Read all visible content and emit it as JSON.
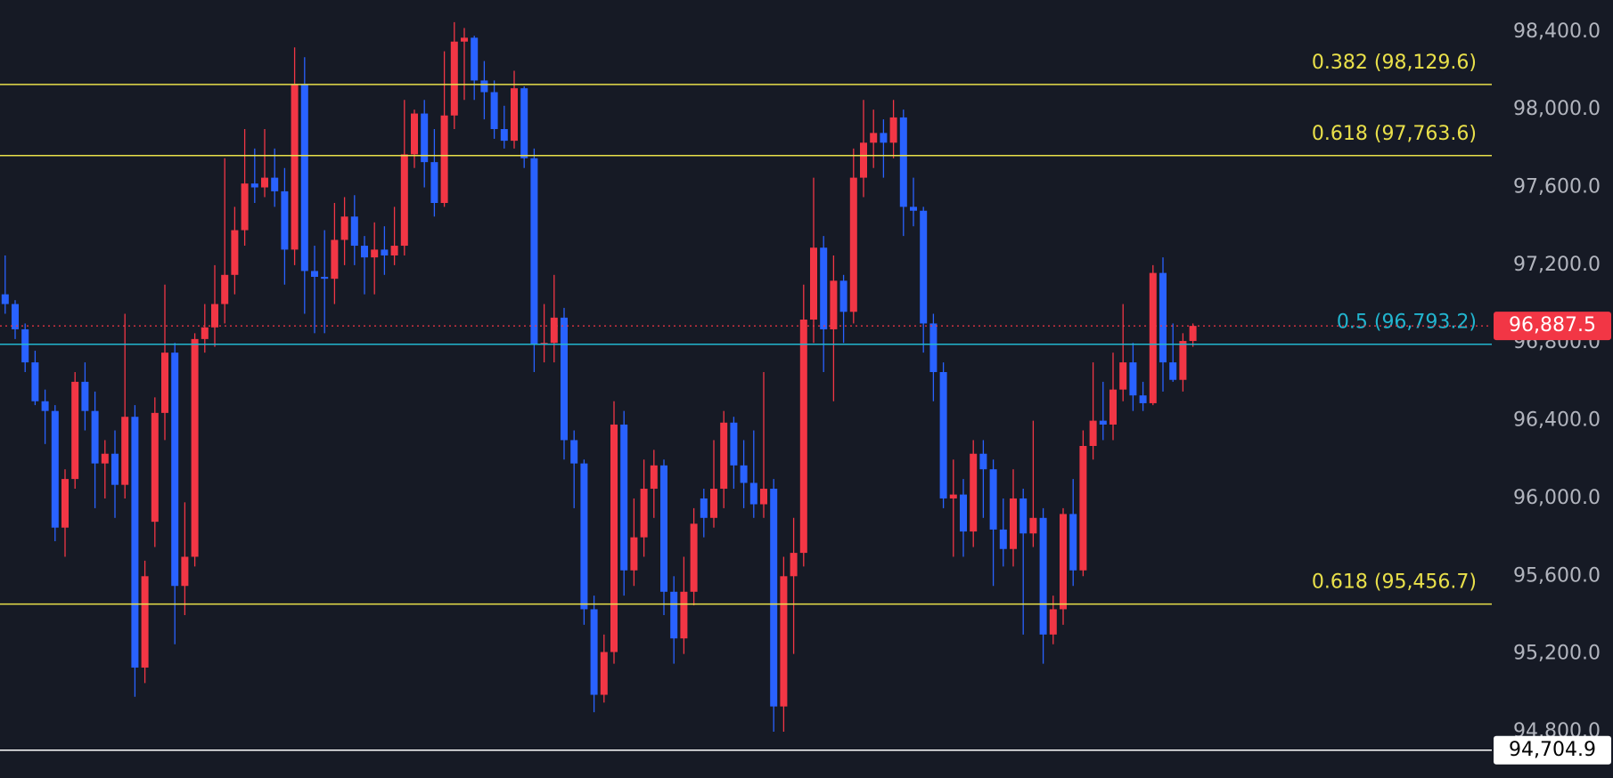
{
  "chart_data": {
    "type": "candlestick",
    "up_color": "#f23645",
    "down_color": "#2962ff",
    "ylim": [
      94562,
      98564
    ],
    "yticks": [
      {
        "value": 94800,
        "label": "94,800.0"
      },
      {
        "value": 95200,
        "label": "95,200.0"
      },
      {
        "value": 95600,
        "label": "95,600.0"
      },
      {
        "value": 96000,
        "label": "96,000.0"
      },
      {
        "value": 96400,
        "label": "96,400.0"
      },
      {
        "value": 96800,
        "label": "96,800.0"
      },
      {
        "value": 97200,
        "label": "97,200.0"
      },
      {
        "value": 97600,
        "label": "97,600.0"
      },
      {
        "value": 98000,
        "label": "98,000.0"
      },
      {
        "value": 98400,
        "label": "98,400.0"
      }
    ],
    "levels": [
      {
        "value": 98129.6,
        "label": "0.382 (98,129.6)",
        "color": "#e9e04a"
      },
      {
        "value": 97763.6,
        "label": "0.618 (97,763.6)",
        "color": "#e9e04a"
      },
      {
        "value": 96793.2,
        "label": "0.5 (96,793.2)",
        "color": "#22b5cf"
      },
      {
        "value": 95456.7,
        "label": "0.618 (95,456.7)",
        "color": "#e9e04a"
      }
    ],
    "price_markers": [
      {
        "value": 96887.5,
        "label": "96,887.5",
        "color": "#f23645"
      },
      {
        "value": 94704.9,
        "label": "94,704.9",
        "color": "#ffffff"
      }
    ],
    "candles": [
      [
        97050,
        97250,
        96950,
        97000
      ],
      [
        97000,
        97020,
        96820,
        96870
      ],
      [
        96870,
        96900,
        96650,
        96700
      ],
      [
        96700,
        96760,
        96480,
        96500
      ],
      [
        96500,
        96560,
        96280,
        96450
      ],
      [
        96450,
        96480,
        95780,
        95850
      ],
      [
        95850,
        96150,
        95700,
        96100
      ],
      [
        96100,
        96650,
        96050,
        96600
      ],
      [
        96600,
        96700,
        96350,
        96450
      ],
      [
        96450,
        96550,
        95950,
        96180
      ],
      [
        96180,
        96300,
        96000,
        96230
      ],
      [
        96230,
        96350,
        95900,
        96070
      ],
      [
        96070,
        96950,
        96000,
        96420
      ],
      [
        96420,
        96480,
        94980,
        95130
      ],
      [
        95130,
        95680,
        95050,
        95600
      ],
      [
        95880,
        96520,
        95750,
        96440
      ],
      [
        96440,
        97100,
        96300,
        96750
      ],
      [
        96750,
        96800,
        95250,
        95550
      ],
      [
        95550,
        95980,
        95400,
        95700
      ],
      [
        95700,
        96850,
        95650,
        96820
      ],
      [
        96820,
        97000,
        96750,
        96880
      ],
      [
        96880,
        97200,
        96780,
        97000
      ],
      [
        97000,
        97750,
        96900,
        97150
      ],
      [
        97150,
        97500,
        97050,
        97380
      ],
      [
        97380,
        97900,
        97300,
        97620
      ],
      [
        97620,
        97800,
        97520,
        97600
      ],
      [
        97600,
        97900,
        97550,
        97650
      ],
      [
        97650,
        97800,
        97500,
        97580
      ],
      [
        97580,
        97700,
        97100,
        97280
      ],
      [
        97280,
        98320,
        97200,
        98130
      ],
      [
        98130,
        98270,
        96950,
        97170
      ],
      [
        97170,
        97300,
        96850,
        97140
      ],
      [
        97140,
        97380,
        96850,
        97130
      ],
      [
        97130,
        97520,
        97000,
        97330
      ],
      [
        97330,
        97550,
        97200,
        97450
      ],
      [
        97450,
        97560,
        97200,
        97300
      ],
      [
        97300,
        97350,
        97050,
        97240
      ],
      [
        97240,
        97420,
        97050,
        97280
      ],
      [
        97280,
        97400,
        97150,
        97250
      ],
      [
        97250,
        97500,
        97200,
        97300
      ],
      [
        97300,
        98050,
        97250,
        97770
      ],
      [
        97770,
        98000,
        97700,
        97980
      ],
      [
        97980,
        98050,
        97600,
        97730
      ],
      [
        97730,
        97900,
        97450,
        97520
      ],
      [
        97520,
        98300,
        97500,
        97970
      ],
      [
        97970,
        98450,
        97900,
        98350
      ],
      [
        98350,
        98420,
        98050,
        98370
      ],
      [
        98370,
        98380,
        98050,
        98150
      ],
      [
        98150,
        98250,
        97950,
        98090
      ],
      [
        98090,
        98150,
        97850,
        97900
      ],
      [
        97900,
        98020,
        97800,
        97840
      ],
      [
        97840,
        98200,
        97800,
        98110
      ],
      [
        98110,
        98120,
        97700,
        97750
      ],
      [
        97750,
        97800,
        96650,
        96790
      ],
      [
        96790,
        97000,
        96700,
        96800
      ],
      [
        96800,
        97150,
        96700,
        96930
      ],
      [
        96930,
        96980,
        96200,
        96300
      ],
      [
        96300,
        96350,
        95950,
        96180
      ],
      [
        96180,
        96200,
        95350,
        95430
      ],
      [
        95430,
        95500,
        94900,
        94990
      ],
      [
        94990,
        95300,
        94950,
        95210
      ],
      [
        95210,
        96500,
        95150,
        96380
      ],
      [
        96380,
        96450,
        95500,
        95630
      ],
      [
        95630,
        96000,
        95550,
        95800
      ],
      [
        95800,
        96200,
        95700,
        96050
      ],
      [
        96050,
        96250,
        95900,
        96170
      ],
      [
        96170,
        96200,
        95400,
        95520
      ],
      [
        95520,
        95600,
        95150,
        95280
      ],
      [
        95280,
        95700,
        95200,
        95520
      ],
      [
        95520,
        95950,
        95450,
        95870
      ],
      [
        96000,
        96050,
        95800,
        95900
      ],
      [
        95900,
        96300,
        95850,
        96050
      ],
      [
        96050,
        96450,
        95950,
        96390
      ],
      [
        96390,
        96420,
        96050,
        96170
      ],
      [
        96170,
        96300,
        95950,
        96080
      ],
      [
        96080,
        96350,
        95900,
        95970
      ],
      [
        95970,
        96650,
        95900,
        96050
      ],
      [
        96050,
        96100,
        94800,
        94930
      ],
      [
        94930,
        95700,
        94800,
        95600
      ],
      [
        95600,
        95900,
        95200,
        95720
      ],
      [
        95720,
        97100,
        95650,
        96920
      ],
      [
        96920,
        97650,
        96800,
        97290
      ],
      [
        97290,
        97350,
        96650,
        96870
      ],
      [
        96870,
        97250,
        96500,
        97120
      ],
      [
        97120,
        97150,
        96800,
        96960
      ],
      [
        96960,
        97800,
        96900,
        97650
      ],
      [
        97650,
        98050,
        97550,
        97830
      ],
      [
        97830,
        98000,
        97700,
        97880
      ],
      [
        97880,
        97950,
        97650,
        97830
      ],
      [
        97830,
        98050,
        97750,
        97960
      ],
      [
        97960,
        98000,
        97350,
        97500
      ],
      [
        97500,
        97650,
        97400,
        97480
      ],
      [
        97480,
        97500,
        96750,
        96900
      ],
      [
        96900,
        96950,
        96500,
        96650
      ],
      [
        96650,
        96700,
        95950,
        96000
      ],
      [
        96000,
        96200,
        95700,
        96020
      ],
      [
        96020,
        96100,
        95700,
        95830
      ],
      [
        95830,
        96300,
        95750,
        96230
      ],
      [
        96230,
        96300,
        95900,
        96150
      ],
      [
        96150,
        96200,
        95550,
        95840
      ],
      [
        95840,
        96000,
        95650,
        95740
      ],
      [
        95740,
        96150,
        95650,
        96000
      ],
      [
        96000,
        96050,
        95300,
        95820
      ],
      [
        95820,
        96400,
        95750,
        95900
      ],
      [
        95900,
        95950,
        95150,
        95300
      ],
      [
        95300,
        95500,
        95250,
        95430
      ],
      [
        95430,
        95950,
        95350,
        95920
      ],
      [
        95920,
        96100,
        95550,
        95630
      ],
      [
        95630,
        96350,
        95600,
        96270
      ],
      [
        96270,
        96700,
        96200,
        96400
      ],
      [
        96400,
        96600,
        96300,
        96380
      ],
      [
        96380,
        96750,
        96300,
        96560
      ],
      [
        96560,
        97000,
        96500,
        96700
      ],
      [
        96700,
        96800,
        96450,
        96530
      ],
      [
        96530,
        96600,
        96450,
        96490
      ],
      [
        96490,
        97200,
        96480,
        97160
      ],
      [
        97160,
        97240,
        96550,
        96700
      ],
      [
        96700,
        96900,
        96600,
        96610
      ],
      [
        96610,
        96850,
        96550,
        96810
      ],
      [
        96810,
        96900,
        96780,
        96887.5
      ]
    ]
  }
}
